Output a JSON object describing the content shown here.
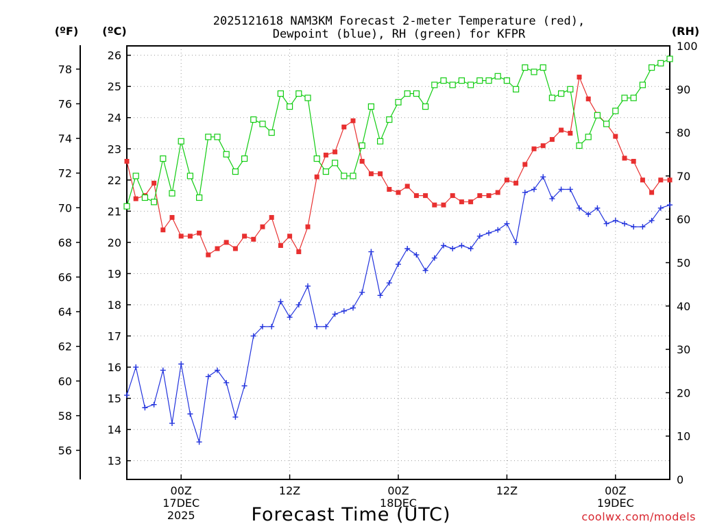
{
  "colors": {
    "temperature": "#e83030",
    "dewpoint": "#2233dd",
    "rh": "#11cc11",
    "credit": "#d8262f"
  },
  "chart_data": {
    "type": "line",
    "title": [
      "2025121618 NAM3KM Forecast 2-meter Temperature (red),",
      "Dewpoint (blue), RH (green) for KFPR"
    ],
    "xlabel": "Forecast Time (UTC)",
    "credit": "coolwx.com/models",
    "axes": {
      "left_outer_label": "(ºF)",
      "left_inner_label": "(ºC)",
      "right_label": "(RH)",
      "fahrenheit_ticks": [
        "56",
        "58",
        "60",
        "62",
        "64",
        "66",
        "68",
        "70",
        "72",
        "74",
        "76",
        "78"
      ],
      "celsius_ticks": [
        "13",
        "14",
        "15",
        "16",
        "17",
        "18",
        "19",
        "20",
        "21",
        "22",
        "23",
        "24",
        "25",
        "26"
      ],
      "rh_ticks": [
        "0",
        "10",
        "20",
        "30",
        "40",
        "50",
        "60",
        "70",
        "80",
        "90",
        "100"
      ],
      "celsius_range": [
        12.4,
        26.3
      ],
      "rh_range": [
        0,
        100
      ],
      "x_range_hours": [
        18,
        78
      ],
      "grid": true
    },
    "x_ticks": [
      {
        "hour": 24,
        "lines": [
          "00Z",
          "17DEC",
          "2025"
        ]
      },
      {
        "hour": 36,
        "lines": [
          "12Z"
        ]
      },
      {
        "hour": 48,
        "lines": [
          "00Z",
          "18DEC"
        ]
      },
      {
        "hour": 60,
        "lines": [
          "12Z"
        ]
      },
      {
        "hour": 72,
        "lines": [
          "00Z",
          "19DEC"
        ]
      }
    ],
    "x_hours": [
      18,
      19,
      20,
      21,
      22,
      23,
      24,
      25,
      26,
      27,
      28,
      29,
      30,
      31,
      32,
      33,
      34,
      35,
      36,
      37,
      38,
      39,
      40,
      41,
      42,
      43,
      44,
      45,
      46,
      47,
      48,
      49,
      50,
      51,
      52,
      53,
      54,
      55,
      56,
      57,
      58,
      59,
      60,
      61,
      62,
      63,
      64,
      65,
      66,
      67,
      68,
      69,
      70,
      71,
      72,
      73,
      74,
      75,
      76,
      77,
      78
    ],
    "series": [
      {
        "name": "Temperature",
        "units": "°C",
        "values": [
          22.6,
          21.4,
          21.5,
          21.9,
          20.4,
          20.8,
          20.2,
          20.2,
          20.3,
          19.6,
          19.8,
          20.0,
          19.8,
          20.2,
          20.1,
          20.5,
          20.8,
          19.9,
          20.2,
          19.7,
          20.5,
          22.1,
          22.8,
          22.9,
          23.7,
          23.9,
          22.6,
          22.2,
          22.2,
          21.7,
          21.6,
          21.8,
          21.5,
          21.5,
          21.2,
          21.2,
          21.5,
          21.3,
          21.3,
          21.5,
          21.5,
          21.6,
          22.0,
          21.9,
          22.5,
          23.0,
          23.1,
          23.3,
          23.6,
          23.5,
          25.3,
          24.6,
          24.1,
          23.8,
          23.4,
          22.7,
          22.6,
          22.0,
          21.6,
          22.0,
          22.0
        ]
      },
      {
        "name": "Dewpoint",
        "units": "°C",
        "values": [
          15.1,
          16.0,
          14.7,
          14.8,
          15.9,
          14.2,
          16.1,
          14.5,
          13.6,
          15.7,
          15.9,
          15.5,
          14.4,
          15.4,
          17.0,
          17.3,
          17.3,
          18.1,
          17.6,
          18.0,
          18.6,
          17.3,
          17.3,
          17.7,
          17.8,
          17.9,
          18.4,
          19.7,
          18.3,
          18.7,
          19.3,
          19.8,
          19.6,
          19.1,
          19.5,
          19.9,
          19.8,
          19.9,
          19.8,
          20.2,
          20.3,
          20.4,
          20.6,
          20.0,
          21.6,
          21.7,
          22.1,
          21.4,
          21.7,
          21.7,
          21.1,
          20.9,
          21.1,
          20.6,
          20.7,
          20.6,
          20.5,
          20.5,
          20.7,
          21.1,
          21.2
        ]
      },
      {
        "name": "RH",
        "units": "%",
        "values": [
          63,
          70,
          65,
          64,
          74,
          66,
          78,
          70,
          65,
          79,
          79,
          75,
          71,
          74,
          83,
          82,
          80,
          89,
          86,
          89,
          88,
          74,
          71,
          73,
          70,
          70,
          77,
          86,
          78,
          83,
          87,
          89,
          89,
          86,
          91,
          92,
          91,
          92,
          91,
          92,
          92,
          93,
          92,
          90,
          95,
          94,
          95,
          88,
          89,
          90,
          77,
          79,
          84,
          82,
          85,
          88,
          88,
          91,
          95,
          96,
          97
        ]
      }
    ]
  }
}
